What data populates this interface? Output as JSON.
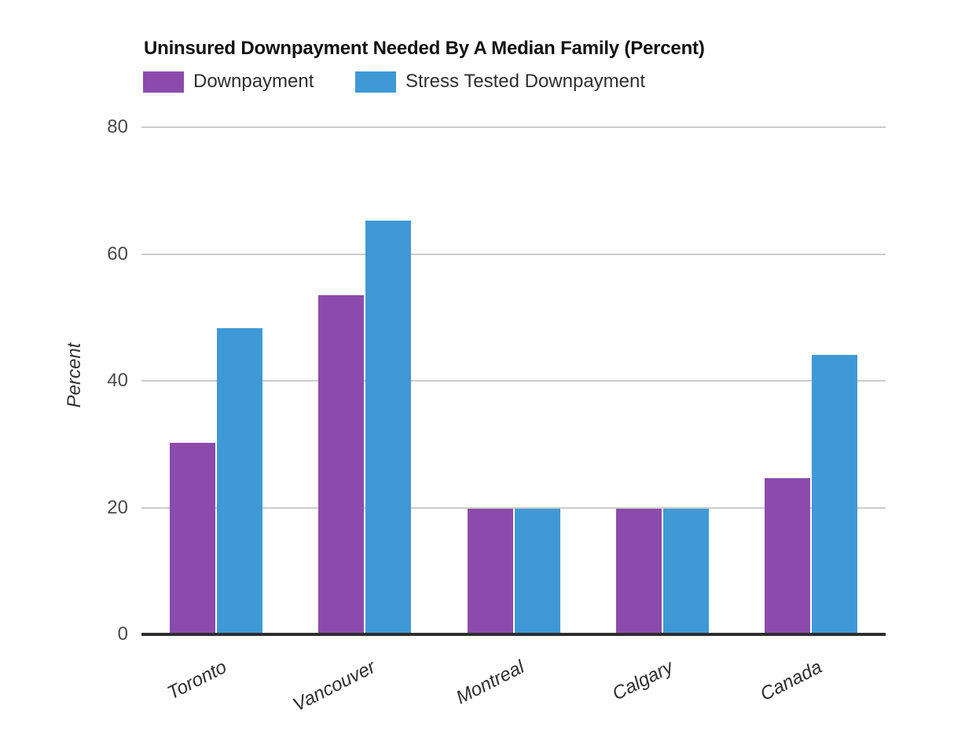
{
  "header": {
    "title": "Uninsured Downpayment Needed By A Median Family (Percent)"
  },
  "chart_data": {
    "type": "bar",
    "title": "Uninsured Downpayment Needed By A Median Family (Percent)",
    "categories": [
      "Toronto",
      "Vancouver",
      "Montreal",
      "Calgary",
      "Canada"
    ],
    "series": [
      {
        "name": "Downpayment",
        "color": "#8C4BAC",
        "values": [
          30.2,
          53.5,
          19.8,
          19.8,
          24.7
        ]
      },
      {
        "name": "Stress Tested Downpayment",
        "color": "#3E99D6",
        "values": [
          48.3,
          65.3,
          19.8,
          19.8,
          44.1
        ]
      }
    ],
    "xlabel": "",
    "ylabel": "Percent",
    "ylim": [
      0,
      80
    ],
    "yticks": [
      0,
      20,
      40,
      60,
      80
    ],
    "grid": true,
    "legend_position": "top-left",
    "style_colors": {
      "background": "#ffffff",
      "grid": "#cccccc",
      "axis_line": "#2e2e2e",
      "tick_label": "#4a4a4a",
      "category_label": "#2e2e2e",
      "title": "#111111"
    }
  }
}
